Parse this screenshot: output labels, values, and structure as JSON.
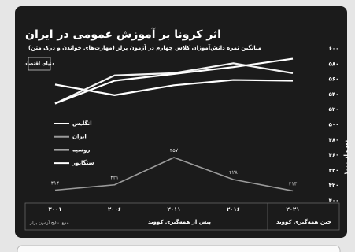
{
  "chart_data": {
    "type": "line",
    "title": "اثر کرونا بر آموزش عمومی در ایران",
    "subtitle": "میانگین نمره دانش‌آموزان کلاس چهارم در آزمون پرلز (مهارت‌های خواندن و درک متن)",
    "logo": "دنیای اقتصاد",
    "ylabel": "نمره از ۱۰۰۰",
    "categories": [
      "۲۰۰۱",
      "۲۰۰۶",
      "۲۰۱۱",
      "۲۰۱۶",
      "۲۰۲۱"
    ],
    "period_labels": [
      "پیش از همه‌گیری کووید",
      "حین همه‌گیری کووید"
    ],
    "source": "منبع: نتایج آزمون پرلز",
    "series": [
      {
        "name": "انگلیس",
        "color": "#ffffff",
        "values": [
          553,
          539,
          552,
          559,
          558
        ]
      },
      {
        "name": "ایران",
        "color": "#9a9a9a",
        "values": [
          414,
          421,
          457,
          428,
          413
        ],
        "value_labels": [
          "۴۱۴",
          "۴۲۱",
          "۴۵۷",
          "۴۲۸",
          "۴۱۳"
        ]
      },
      {
        "name": "روسیه",
        "color": "#f2f2f2",
        "values": [
          528,
          565,
          568,
          581,
          568
        ]
      },
      {
        "name": "سنگاپور",
        "color": "#ffffff",
        "values": [
          528,
          558,
          567,
          576,
          587
        ]
      }
    ],
    "ylim": [
      400,
      600
    ],
    "yticks": [
      {
        "value": 600,
        "label": "۶۰۰"
      },
      {
        "value": 580,
        "label": "۵۸۰"
      },
      {
        "value": 560,
        "label": "۵۶۰"
      },
      {
        "value": 540,
        "label": "۵۴۰"
      },
      {
        "value": 520,
        "label": "۵۲۰"
      },
      {
        "value": 500,
        "label": "۵۰۰"
      },
      {
        "value": 480,
        "label": "۴۸۰"
      },
      {
        "value": 460,
        "label": "۴۶۰"
      },
      {
        "value": 440,
        "label": "۴۴۰"
      },
      {
        "value": 420,
        "label": "۴۲۰"
      },
      {
        "value": 400,
        "label": "۴۰۰"
      }
    ],
    "grid": false
  }
}
